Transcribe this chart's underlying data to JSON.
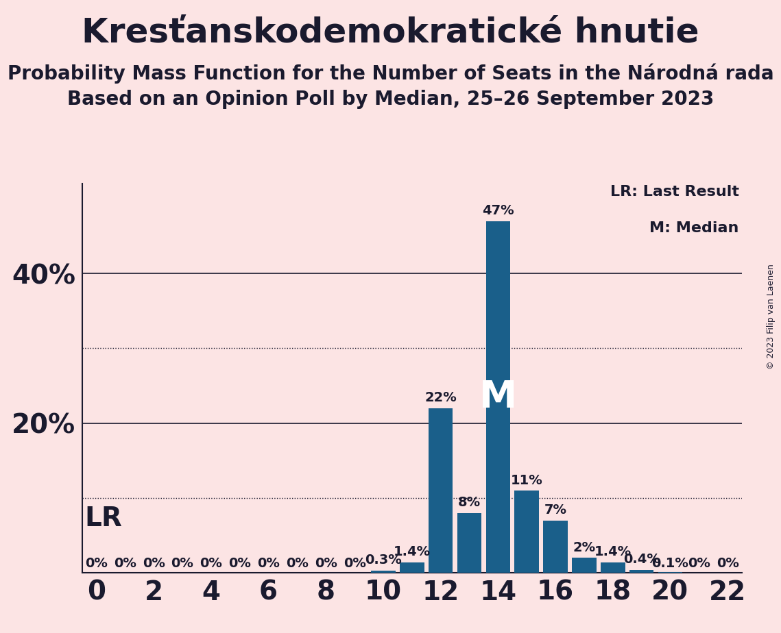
{
  "title": "Kresťanskodemokratické hnutie",
  "subtitle1": "Probability Mass Function for the Number of Seats in the Národná rada",
  "subtitle2": "Based on an Opinion Poll by Median, 25–26 September 2023",
  "copyright": "© 2023 Filip van Laenen",
  "legend_lr": "LR: Last Result",
  "legend_m": "M: Median",
  "background_color": "#fce4e4",
  "bar_color": "#1a5f8a",
  "seats": [
    0,
    1,
    2,
    3,
    4,
    5,
    6,
    7,
    8,
    9,
    10,
    11,
    12,
    13,
    14,
    15,
    16,
    17,
    18,
    19,
    20,
    21,
    22
  ],
  "probabilities": [
    0.0,
    0.0,
    0.0,
    0.0,
    0.0,
    0.0,
    0.0,
    0.0,
    0.0,
    0.0,
    0.3,
    1.4,
    22.0,
    8.0,
    47.0,
    11.0,
    7.0,
    2.0,
    1.4,
    0.4,
    0.1,
    0.0,
    0.0
  ],
  "labels": [
    "0%",
    "0%",
    "0%",
    "0%",
    "0%",
    "0%",
    "0%",
    "0%",
    "0%",
    "0%",
    "0.3%",
    "1.4%",
    "22%",
    "8%",
    "47%",
    "11%",
    "7%",
    "2%",
    "1.4%",
    "0.4%",
    "0.1%",
    "0%",
    "0%"
  ],
  "lr_seat": 0,
  "median_seat": 14,
  "ylim": [
    0,
    52
  ],
  "major_yticks": [
    20,
    40
  ],
  "minor_yticks": [
    10,
    30
  ],
  "xticks": [
    0,
    2,
    4,
    6,
    8,
    10,
    12,
    14,
    16,
    18,
    20,
    22
  ],
  "xlim": [
    -0.5,
    22.5
  ],
  "text_color": "#1a1a2e",
  "title_fontsize": 36,
  "subtitle_fontsize": 20,
  "axis_label_fontsize": 28,
  "bar_label_fontsize": 14,
  "lr_fontsize": 28,
  "median_fontsize": 40
}
